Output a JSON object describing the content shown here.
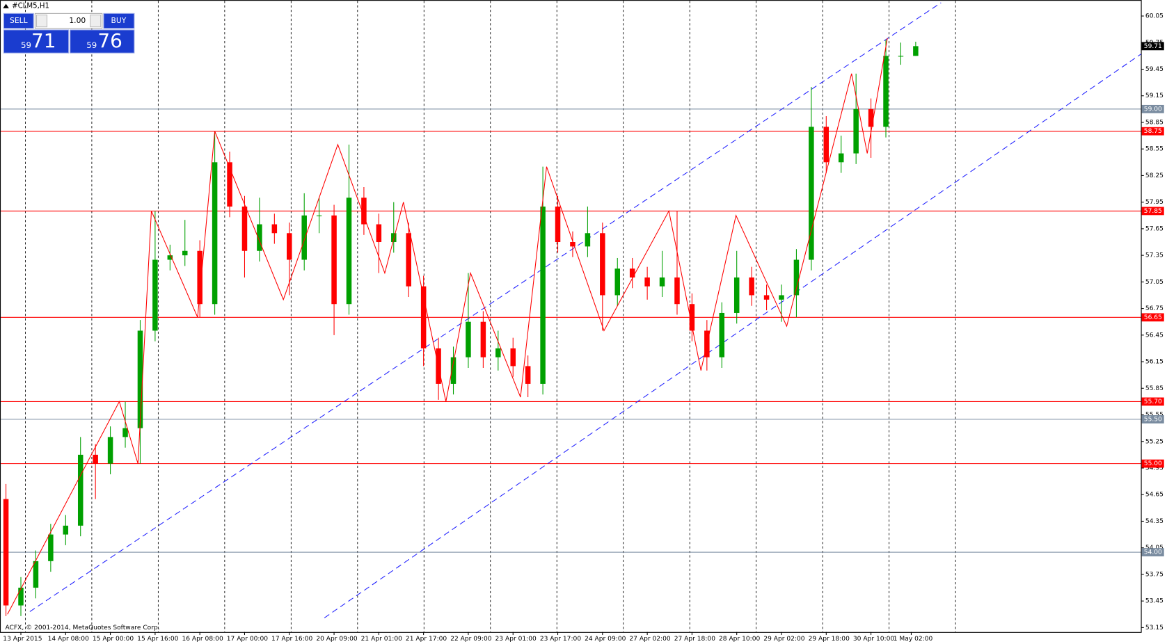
{
  "chart_data": {
    "type": "candlestick",
    "title": "#CLM5,H1",
    "annotation": "ACFX, © 2001-2014, MetaQuotes Software Corp.",
    "trade_panel": {
      "sell": "SELL",
      "buy": "BUY",
      "lots": "1.00",
      "sell_price": {
        "small": "59",
        "big": "71"
      },
      "buy_price": {
        "small": "59",
        "big": "76"
      }
    },
    "colors": {
      "up": "#00a000",
      "down": "#ff0000",
      "zigzag": "#ff0000",
      "channel": "#2323ff"
    },
    "open": [
      54.6,
      53.4,
      53.6,
      53.9,
      54.2,
      54.3,
      55.1,
      55.0,
      55.3,
      55.4,
      56.5,
      57.3,
      57.35,
      57.4,
      56.8,
      58.4,
      57.9,
      57.4,
      57.7,
      57.6,
      57.3,
      57.8,
      57.8,
      56.8,
      58.0,
      57.7,
      57.5,
      57.6,
      57.0,
      56.3,
      55.9,
      56.2,
      56.6,
      56.2,
      56.3,
      56.1,
      55.9,
      57.9,
      57.5,
      57.45,
      57.6,
      56.9,
      57.2,
      57.1,
      57.0,
      57.1,
      56.8,
      56.5,
      56.2,
      56.7,
      57.1,
      56.9,
      56.85,
      56.9,
      57.3,
      58.8,
      58.4,
      58.5,
      59.0,
      58.8,
      59.6,
      59.6
    ],
    "high": [
      54.77,
      53.72,
      54.02,
      54.32,
      54.42,
      55.3,
      55.22,
      55.42,
      55.7,
      56.62,
      57.85,
      57.47,
      57.75,
      57.52,
      58.75,
      58.52,
      58.02,
      58.0,
      57.82,
      57.72,
      58.05,
      58.0,
      57.92,
      58.6,
      58.12,
      57.82,
      57.95,
      57.72,
      57.12,
      56.42,
      56.32,
      57.15,
      56.72,
      56.5,
      56.42,
      56.22,
      58.35,
      58.02,
      57.62,
      57.9,
      57.72,
      57.32,
      57.32,
      57.22,
      57.4,
      57.85,
      56.92,
      56.62,
      56.82,
      57.4,
      57.22,
      57.02,
      57.02,
      57.42,
      59.25,
      58.92,
      58.7,
      59.4,
      59.12,
      59.78,
      59.75,
      59.76
    ],
    "low": [
      53.28,
      53.28,
      53.48,
      53.78,
      54.08,
      54.18,
      54.6,
      54.88,
      55.18,
      55.0,
      56.38,
      57.18,
      57.23,
      56.65,
      56.68,
      57.78,
      57.1,
      57.28,
      57.48,
      56.9,
      57.18,
      57.6,
      56.45,
      56.68,
      57.58,
      57.15,
      57.38,
      56.88,
      56.1,
      55.72,
      55.78,
      56.08,
      56.08,
      56.05,
      55.98,
      55.75,
      55.78,
      57.38,
      57.33,
      57.33,
      56.5,
      56.78,
      56.98,
      56.85,
      56.88,
      56.68,
      56.38,
      56.05,
      56.08,
      56.58,
      56.78,
      56.73,
      56.6,
      56.65,
      57.18,
      58.28,
      58.28,
      58.38,
      58.45,
      58.68,
      59.5,
      59.6
    ],
    "close": [
      53.4,
      53.6,
      53.9,
      54.2,
      54.3,
      55.1,
      55.0,
      55.3,
      55.4,
      56.5,
      57.3,
      57.35,
      57.4,
      56.8,
      58.4,
      57.9,
      57.4,
      57.7,
      57.6,
      57.3,
      57.8,
      57.8,
      56.8,
      58.0,
      57.7,
      57.5,
      57.6,
      57.0,
      56.3,
      55.9,
      56.2,
      56.6,
      56.2,
      56.3,
      56.1,
      55.9,
      57.9,
      57.5,
      57.45,
      57.6,
      56.9,
      57.2,
      57.1,
      57.0,
      57.1,
      56.8,
      56.5,
      56.2,
      56.7,
      57.1,
      56.9,
      56.85,
      56.9,
      57.3,
      58.8,
      58.4,
      58.5,
      59.0,
      58.8,
      59.6,
      59.6,
      59.71
    ],
    "xlim": [
      -0.4,
      76.1
    ],
    "xticks": [
      {
        "value": 1,
        "label": "13 Apr 2015"
      },
      {
        "value": 4,
        "label": "14 Apr 08:00"
      },
      {
        "value": 7,
        "label": "15 Apr 00:00"
      },
      {
        "value": 10,
        "label": "15 Apr 16:00"
      },
      {
        "value": 13,
        "label": "16 Apr 08:00"
      },
      {
        "value": 16,
        "label": "17 Apr 00:00"
      },
      {
        "value": 19,
        "label": "17 Apr 16:00"
      },
      {
        "value": 22,
        "label": "20 Apr 09:00"
      },
      {
        "value": 25,
        "label": "21 Apr 01:00"
      },
      {
        "value": 28,
        "label": "21 Apr 17:00"
      },
      {
        "value": 31,
        "label": "22 Apr 09:00"
      },
      {
        "value": 34,
        "label": "23 Apr 01:00"
      },
      {
        "value": 37,
        "label": "23 Apr 17:00"
      },
      {
        "value": 40,
        "label": "24 Apr 09:00"
      },
      {
        "value": 43,
        "label": "27 Apr 02:00"
      },
      {
        "value": 46,
        "label": "27 Apr 18:00"
      },
      {
        "value": 49,
        "label": "28 Apr 10:00"
      },
      {
        "value": 52,
        "label": "29 Apr 02:00"
      },
      {
        "value": 55,
        "label": "29 Apr 18:00"
      },
      {
        "value": 58,
        "label": "30 Apr 10:00"
      },
      {
        "value": 60.7,
        "label": "1 May 02:00"
      }
    ],
    "ylim": [
      53.1,
      60.23
    ],
    "yticks": [
      60.05,
      59.75,
      59.45,
      59.15,
      58.85,
      58.55,
      58.25,
      57.95,
      57.65,
      57.35,
      57.05,
      56.75,
      56.45,
      56.15,
      55.85,
      55.55,
      55.25,
      54.95,
      54.65,
      54.35,
      54.05,
      53.75,
      53.45,
      53.15
    ],
    "levels": [
      {
        "value": 59.0,
        "label": "59.00",
        "color": "#7a8ca0"
      },
      {
        "value": 58.75,
        "label": "58.75",
        "color": "#ff0000"
      },
      {
        "value": 57.85,
        "label": "57.85",
        "color": "#ff0000"
      },
      {
        "value": 56.65,
        "label": "56.65",
        "color": "#ff0000"
      },
      {
        "value": 55.7,
        "label": "55.70",
        "color": "#ff0000"
      },
      {
        "value": 55.5,
        "label": "55.50",
        "color": "#7a8ca0"
      },
      {
        "value": 55.0,
        "label": "55.00",
        "color": "#ff0000"
      },
      {
        "value": 54.0,
        "label": "54.00",
        "color": "#7a8ca0"
      }
    ],
    "last_price": {
      "value": 59.71,
      "label": "59.71"
    },
    "zigzag": {
      "x": [
        0.1,
        7.6,
        8.85,
        9.75,
        12.85,
        14,
        18.6,
        22.25,
        25.4,
        26.65,
        29.5,
        31.15,
        34.5,
        36.25,
        40.1,
        44.45,
        46.6,
        48.95,
        52.35,
        56.7,
        57.75,
        59.1
      ],
      "y": [
        53.3,
        55.7,
        55.0,
        57.85,
        56.65,
        58.75,
        56.85,
        58.6,
        57.15,
        57.95,
        55.7,
        57.15,
        55.75,
        58.35,
        56.5,
        57.85,
        56.05,
        57.8,
        56.55,
        59.4,
        58.5,
        59.8
      ]
    },
    "channels": [
      {
        "x": [
          1.6,
          62.7
        ],
        "y": [
          53.33,
          60.2
        ]
      },
      {
        "x": [
          21.35,
          76.1
        ],
        "y": [
          53.26,
          59.62
        ]
      }
    ]
  }
}
